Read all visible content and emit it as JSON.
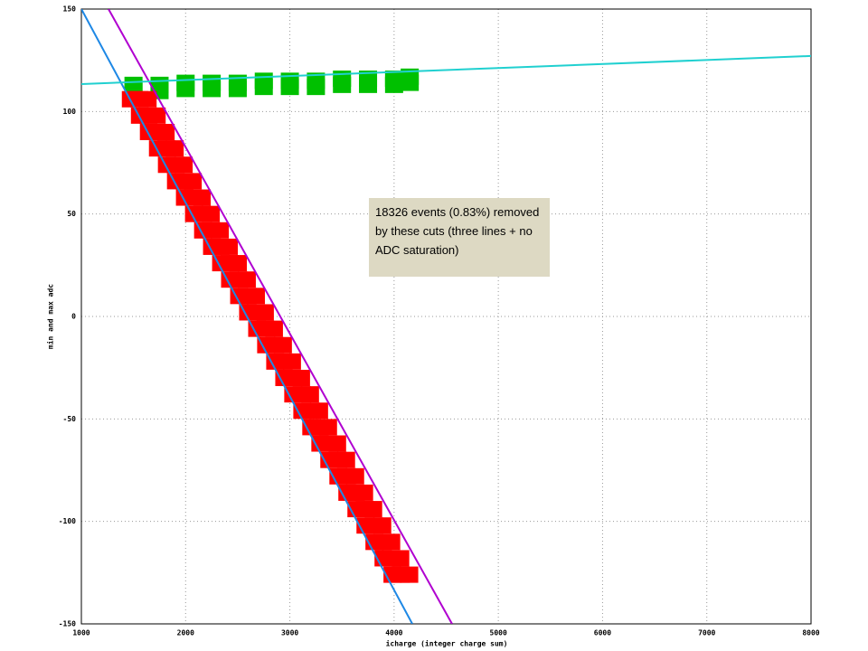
{
  "chart_data": {
    "type": "scatter",
    "x_label": "icharge (integer charge sum)",
    "y_label": "min and max adc",
    "xlim": [
      1000,
      8000
    ],
    "xticks": [
      1000,
      2000,
      3000,
      4000,
      5000,
      6000,
      7000,
      8000
    ],
    "ylim": [
      -150,
      150
    ],
    "yticks": [
      -150,
      -100,
      -50,
      0,
      50,
      100,
      150
    ],
    "grid": true,
    "annotation": "18326 events (0.83%) removed by these cuts (three lines + no ADC saturation)",
    "series": [
      {
        "color": "#00c000",
        "x": [
          1500,
          1750,
          2000,
          2250,
          2500,
          2750,
          3000,
          3250,
          3500,
          3750,
          4000,
          4150,
          1500,
          1750,
          2000,
          2250,
          2500,
          2750,
          3000,
          3250,
          3500,
          3750,
          4000,
          4150
        ],
        "values": [
          110,
          110,
          111,
          111,
          111,
          112,
          112,
          112,
          113,
          113,
          113,
          114,
          113,
          113,
          114,
          114,
          114,
          115,
          115,
          115,
          116,
          116,
          116,
          117
        ]
      },
      {
        "color": "#ff0000",
        "x": [
          1475,
          1555,
          1635,
          1562,
          1642,
          1722,
          1648,
          1728,
          1808,
          1735,
          1815,
          1895,
          1821,
          1901,
          1981,
          1908,
          1988,
          2068,
          1994,
          2074,
          2154,
          2081,
          2161,
          2241,
          2168,
          2248,
          2328,
          2254,
          2334,
          2414,
          2341,
          2421,
          2501,
          2427,
          2507,
          2587,
          2514,
          2594,
          2674,
          2600,
          2680,
          2760,
          2687,
          2767,
          2847,
          2773,
          2853,
          2933,
          2860,
          2940,
          3020,
          2947,
          3027,
          3107,
          3033,
          3113,
          3193,
          3120,
          3200,
          3280,
          3206,
          3286,
          3366,
          3293,
          3373,
          3453,
          3379,
          3459,
          3539,
          3466,
          3546,
          3626,
          3552,
          3632,
          3712,
          3639,
          3719,
          3799,
          3726,
          3806,
          3886,
          3812,
          3892,
          3972,
          3899,
          3979,
          4059,
          3985,
          4065,
          4145
        ],
        "values": [
          106,
          106,
          106,
          98,
          98,
          98,
          90,
          90,
          90,
          82,
          82,
          82,
          74,
          74,
          74,
          66,
          66,
          66,
          58,
          58,
          58,
          50,
          50,
          50,
          42,
          42,
          42,
          34,
          34,
          34,
          26,
          26,
          26,
          18,
          18,
          18,
          10,
          10,
          10,
          2,
          2,
          2,
          -6,
          -6,
          -6,
          -14,
          -14,
          -14,
          -22,
          -22,
          -22,
          -30,
          -30,
          -30,
          -38,
          -38,
          -38,
          -46,
          -46,
          -46,
          -54,
          -54,
          -54,
          -62,
          -62,
          -62,
          -70,
          -70,
          -70,
          -78,
          -78,
          -78,
          -86,
          -86,
          -86,
          -94,
          -94,
          -94,
          -102,
          -102,
          -102,
          -110,
          -110,
          -110,
          -118,
          -118,
          -118,
          -126,
          -126,
          -126
        ]
      }
    ],
    "lines": [
      {
        "color": "#1e88e5",
        "x": [
          1000,
          4175
        ],
        "values": [
          150,
          -150
        ]
      },
      {
        "color": "#b000d0",
        "x": [
          1260,
          4556
        ],
        "values": [
          150,
          -150
        ]
      },
      {
        "color": "#20d0d0",
        "x": [
          1000,
          8000
        ],
        "values": [
          113.4,
          127.1
        ]
      }
    ]
  }
}
